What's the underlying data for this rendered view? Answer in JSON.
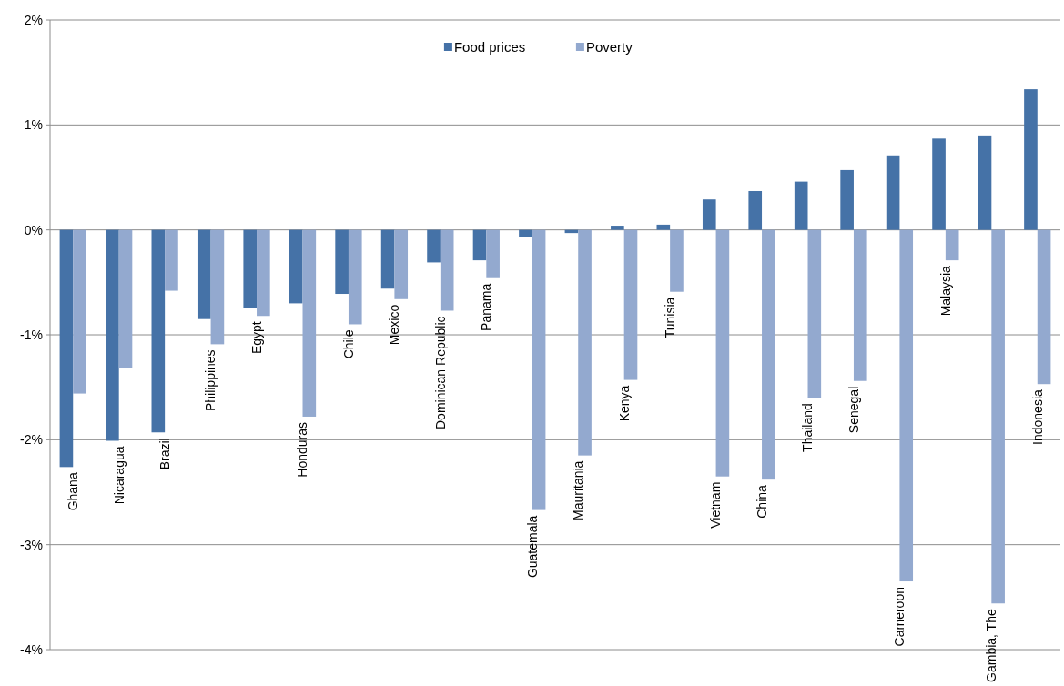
{
  "chart_data": {
    "type": "bar",
    "categories": [
      "Ghana",
      "Nicaragua",
      "Brazil",
      "Philippines",
      "Egypt",
      "Honduras",
      "Chile",
      "Mexico",
      "Dominican Republic",
      "Panama",
      "Guatemala",
      "Mauritania",
      "Kenya",
      "Tunisia",
      "Vietnam",
      "China",
      "Thailand",
      "Senegal",
      "Cameroon",
      "Malaysia",
      "Gambia, The",
      "Indonesia"
    ],
    "series": [
      {
        "name": "Food prices",
        "color": "#4572a7",
        "values": [
          -2.26,
          -2.01,
          -1.93,
          -0.85,
          -0.74,
          -0.7,
          -0.61,
          -0.56,
          -0.31,
          -0.29,
          -0.07,
          -0.03,
          0.04,
          0.05,
          0.29,
          0.37,
          0.46,
          0.57,
          0.71,
          0.87,
          0.9,
          1.34
        ]
      },
      {
        "name": "Poverty",
        "color": "#93a9cf",
        "values": [
          -1.56,
          -1.32,
          -0.58,
          -1.09,
          -0.82,
          -1.78,
          -0.9,
          -0.66,
          -0.77,
          -0.46,
          -2.67,
          -2.15,
          -1.43,
          -0.59,
          -2.35,
          -2.38,
          -1.6,
          -1.44,
          -3.35,
          -0.29,
          -3.56,
          -1.47
        ]
      }
    ],
    "ylim": [
      -4,
      2
    ],
    "yticks": [
      {
        "value": -4,
        "label": "-4%"
      },
      {
        "value": -3,
        "label": "-3%"
      },
      {
        "value": -2,
        "label": "-2%"
      },
      {
        "value": -1,
        "label": "-1%"
      },
      {
        "value": 0,
        "label": "0%"
      },
      {
        "value": 1,
        "label": "1%"
      },
      {
        "value": 2,
        "label": "2%"
      }
    ],
    "grid": "y",
    "legend": "top"
  }
}
